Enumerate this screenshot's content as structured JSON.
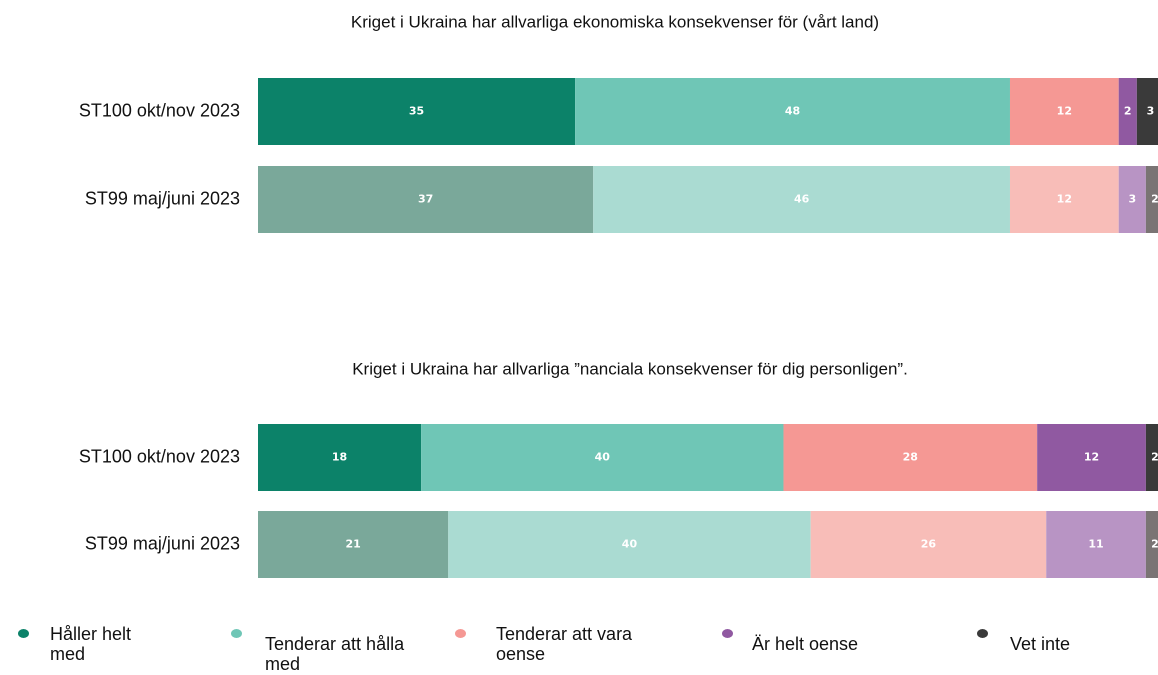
{
  "chart_data": [
    {
      "type": "bar",
      "orientation": "horizontal",
      "stacked": true,
      "title": "Kriget i Ukraina har allvarliga ekonomiska konsekvenser för (vårt land)",
      "categories": [
        "ST100 okt/nov 2023",
        "ST99 maj/juni 2023"
      ],
      "xlim": [
        0,
        100
      ],
      "series": [
        {
          "name": "Håller helt med",
          "colors": [
            "#0c8269",
            "#7aa89a"
          ],
          "values": [
            35,
            37
          ]
        },
        {
          "name": "Tenderar att hålla med",
          "colors": [
            "#6fc6b6",
            "#aadbd2"
          ],
          "values": [
            48,
            46
          ]
        },
        {
          "name": "Tenderar att vara oense",
          "colors": [
            "#f59894",
            "#f8bdb8"
          ],
          "values": [
            12,
            12
          ]
        },
        {
          "name": "Är helt oense",
          "colors": [
            "#9059a1",
            "#b894c4"
          ],
          "values": [
            2,
            3
          ]
        },
        {
          "name": "Vet inte",
          "colors": [
            "#3a3a3a",
            "#7a7474"
          ],
          "values": [
            3,
            2
          ]
        }
      ]
    },
    {
      "type": "bar",
      "orientation": "horizontal",
      "stacked": true,
      "title": "Kriget i Ukraina har allvarliga ”nanciala konsekvenser för dig personligen”.",
      "categories": [
        "ST100 okt/nov 2023",
        "ST99 maj/juni 2023"
      ],
      "xlim": [
        0,
        100
      ],
      "series": [
        {
          "colors": [
            "#0c8269",
            "#7aa89a"
          ],
          "values": [
            18,
            21
          ]
        },
        {
          "colors": [
            "#6fc6b6",
            "#aadbd2"
          ],
          "values": [
            40,
            40
          ]
        },
        {
          "colors": [
            "#f59894",
            "#f8bdb8"
          ],
          "values": [
            28,
            26
          ]
        },
        {
          "colors": [
            "#9059a1",
            "#b894c4"
          ],
          "values": [
            12,
            11
          ]
        },
        {
          "colors": [
            "#3a3a3a",
            "#7a7474"
          ],
          "values": [
            2,
            2
          ]
        }
      ]
    }
  ]
}
